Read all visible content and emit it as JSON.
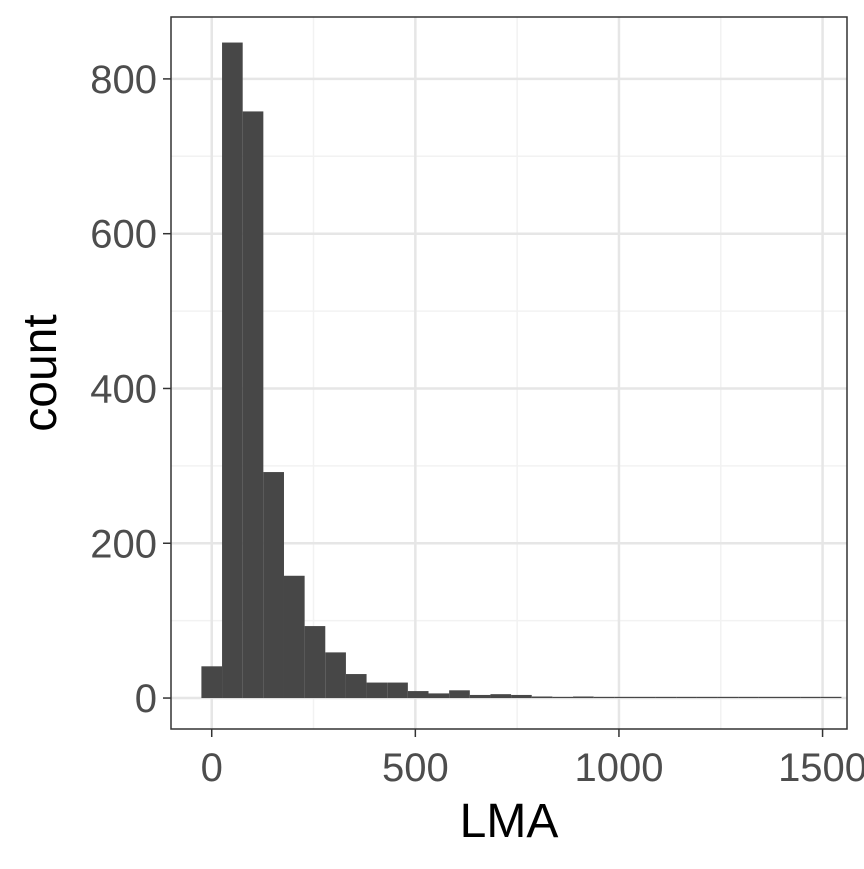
{
  "chart_data": {
    "type": "bar",
    "title": "",
    "xlabel": "LMA",
    "ylabel": "count",
    "xlim": [
      -100,
      1560
    ],
    "ylim": [
      -40,
      880
    ],
    "x_ticks": [
      0,
      500,
      1000,
      1500
    ],
    "x_tick_labels": [
      "0",
      "500",
      "1000",
      "1500"
    ],
    "y_ticks": [
      0,
      200,
      400,
      600,
      800
    ],
    "y_tick_labels": [
      "0",
      "200",
      "400",
      "600",
      "800"
    ],
    "x_minor_gridlines": [
      250,
      750,
      1250
    ],
    "y_minor_gridlines": [
      100,
      300,
      500,
      700
    ],
    "grid": true,
    "legend": "none",
    "bin_width": 50.7,
    "bins": [
      {
        "x": 0,
        "count": 41
      },
      {
        "x": 50.7,
        "count": 847
      },
      {
        "x": 101.4,
        "count": 758
      },
      {
        "x": 152.1,
        "count": 292
      },
      {
        "x": 202.8,
        "count": 158
      },
      {
        "x": 253.5,
        "count": 93
      },
      {
        "x": 304.2,
        "count": 59
      },
      {
        "x": 354.9,
        "count": 31
      },
      {
        "x": 405.6,
        "count": 20
      },
      {
        "x": 456.3,
        "count": 20
      },
      {
        "x": 507,
        "count": 9
      },
      {
        "x": 557.7,
        "count": 6
      },
      {
        "x": 608.4,
        "count": 10
      },
      {
        "x": 659.1,
        "count": 4
      },
      {
        "x": 709.8,
        "count": 5
      },
      {
        "x": 760.5,
        "count": 4
      },
      {
        "x": 811.2,
        "count": 2
      },
      {
        "x": 861.9,
        "count": 1
      },
      {
        "x": 912.6,
        "count": 2
      },
      {
        "x": 963.3,
        "count": 1
      },
      {
        "x": 1014,
        "count": 0
      },
      {
        "x": 1064.7,
        "count": 0
      },
      {
        "x": 1115.4,
        "count": 0
      },
      {
        "x": 1166.1,
        "count": 0
      },
      {
        "x": 1216.8,
        "count": 0
      },
      {
        "x": 1267.5,
        "count": 0
      },
      {
        "x": 1318.2,
        "count": 0
      },
      {
        "x": 1368.9,
        "count": 0
      },
      {
        "x": 1419.6,
        "count": 0
      },
      {
        "x": 1470.3,
        "count": 0
      },
      {
        "x": 1521,
        "count": 1
      }
    ],
    "colors": {
      "bar": "#474747",
      "panel_border": "#333333",
      "grid_major": "#e6e6e6",
      "grid_minor": "#f2f2f2",
      "tick_text": "#4d4d4d",
      "axis_title": "#000000"
    }
  }
}
